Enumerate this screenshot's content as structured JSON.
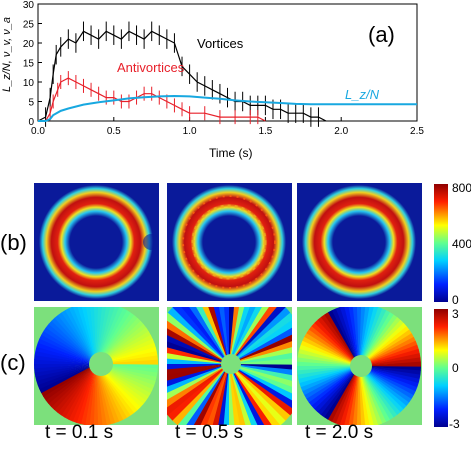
{
  "panel_a": {
    "label": "(a)",
    "ylabel": "L_z/N, ν_v, ν_a",
    "xlabel": "Time (s)",
    "series_labels": {
      "vortices": "Vortices",
      "antivortices": "Antivortices",
      "lz": "L_z/N"
    },
    "colors": {
      "vortices": "#000000",
      "antivortices": "#e8202a",
      "lz": "#18a8e0"
    },
    "chart_data": {
      "type": "line",
      "xlabel": "Time (s)",
      "ylabel": "L_z/N, ν_v, ν_a",
      "xlim": [
        0,
        2.5
      ],
      "ylim": [
        0,
        30
      ],
      "x_ticks": [
        "0.0",
        "0.5",
        "1.0",
        "1.5",
        "2.0",
        "2.5"
      ],
      "y_ticks": [
        "0",
        "5",
        "10",
        "15",
        "20",
        "25",
        "30"
      ],
      "series": [
        {
          "name": "Vortices",
          "x": [
            0.0,
            0.05,
            0.08,
            0.1,
            0.12,
            0.15,
            0.2,
            0.25,
            0.3,
            0.35,
            0.4,
            0.45,
            0.5,
            0.55,
            0.6,
            0.65,
            0.7,
            0.75,
            0.8,
            0.85,
            0.9,
            0.95,
            1.0,
            1.05,
            1.1,
            1.15,
            1.2,
            1.25,
            1.3,
            1.35,
            1.4,
            1.45,
            1.5,
            1.55,
            1.6,
            1.65,
            1.7,
            1.75,
            1.8,
            1.85,
            1.9
          ],
          "y": [
            0,
            1,
            6,
            12,
            17,
            19,
            21,
            20,
            23,
            22,
            21,
            23,
            22,
            21,
            23,
            22,
            21,
            23,
            22,
            21,
            20,
            14,
            12,
            10,
            9,
            8,
            7,
            6,
            5,
            5,
            4,
            4,
            4,
            3,
            3,
            2,
            2,
            2,
            1,
            1,
            0
          ]
        },
        {
          "name": "Antivortices",
          "x": [
            0.0,
            0.05,
            0.08,
            0.1,
            0.13,
            0.15,
            0.2,
            0.25,
            0.3,
            0.35,
            0.4,
            0.45,
            0.5,
            0.55,
            0.6,
            0.65,
            0.7,
            0.75,
            0.8,
            0.85,
            0.9,
            0.95,
            1.0,
            1.1,
            1.2,
            1.3,
            1.4,
            1.45,
            1.5
          ],
          "y": [
            0,
            0,
            2,
            5,
            8,
            10,
            11,
            10,
            9,
            8,
            7,
            6,
            6,
            5,
            5,
            6,
            7,
            7,
            6,
            5,
            4,
            3,
            2,
            2,
            1,
            1,
            1,
            1,
            0
          ]
        },
        {
          "name": "L_z/N",
          "x": [
            0.0,
            0.05,
            0.08,
            0.1,
            0.15,
            0.2,
            0.3,
            0.4,
            0.5,
            0.6,
            0.7,
            0.8,
            0.9,
            1.0,
            1.1,
            1.2,
            1.3,
            1.4,
            1.5,
            1.6,
            1.7,
            1.8,
            2.0,
            2.2,
            2.5
          ],
          "y": [
            0,
            0,
            0.5,
            1.5,
            2.6,
            3.2,
            4.2,
            4.8,
            5.3,
            5.8,
            6.1,
            6.3,
            6.4,
            6.3,
            6.0,
            5.7,
            5.3,
            5.0,
            4.8,
            4.6,
            4.4,
            4.3,
            4.3,
            4.3,
            4.3
          ]
        }
      ]
    }
  },
  "panel_b": {
    "label": "(b)",
    "colorbar_ticks": [
      "800",
      "400",
      "0"
    ],
    "colorbar_range": [
      0,
      800
    ]
  },
  "panel_c": {
    "label": "(c)",
    "colorbar_ticks": [
      "3",
      "0",
      "-3"
    ],
    "colorbar_range": [
      -3,
      3
    ]
  },
  "time_labels": [
    "t = 0.1 s",
    "t = 0.5 s",
    "t = 2.0 s"
  ]
}
